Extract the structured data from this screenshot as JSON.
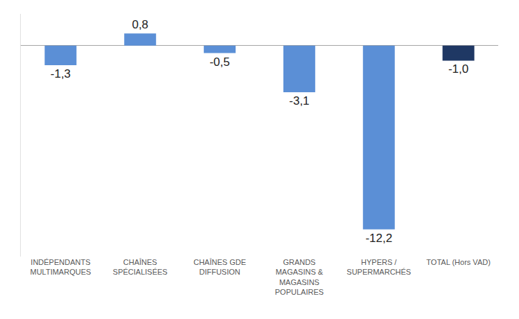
{
  "chart_data": {
    "type": "bar",
    "categories": [
      "INDÉPENDANTS\nMULTIMARQUES",
      "CHAÎNES\nSPÉCIALISÉES",
      "CHAÎNES GDE\nDIFFUSION",
      "GRANDS\nMAGASINS &\nMAGASINS\nPOPULAIRES",
      "HYPERS /\nSUPERMARCHÉS",
      "TOTAL (Hors VAD)"
    ],
    "values": [
      -1.3,
      0.8,
      -0.5,
      -3.1,
      -12.2,
      -1.0
    ],
    "value_labels": [
      "-1,3",
      "0,8",
      "-0,5",
      "-3,1",
      "-12,2",
      "-1,0"
    ],
    "colors": [
      "#5b8fd6",
      "#5b8fd6",
      "#5b8fd6",
      "#5b8fd6",
      "#5b8fd6",
      "#1f3864"
    ],
    "ylim": [
      -14,
      2.1
    ],
    "data_labels": true,
    "tick_labels": "x",
    "grid": false
  }
}
